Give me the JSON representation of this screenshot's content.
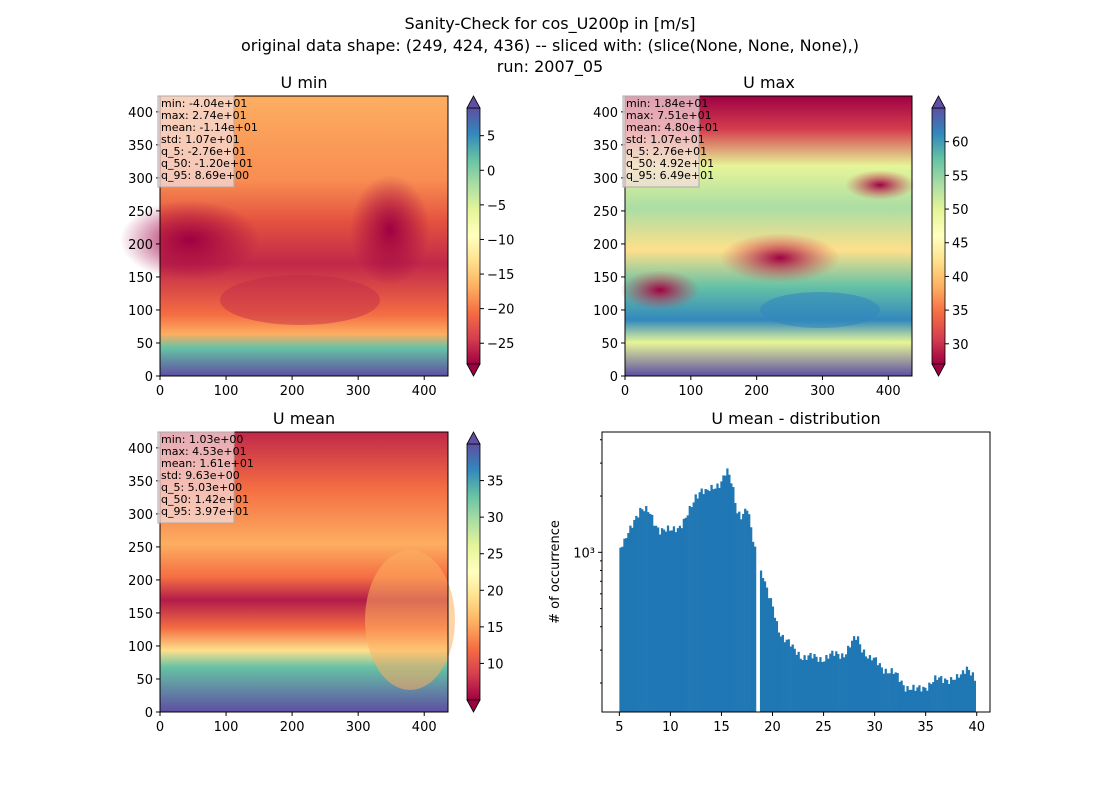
{
  "figure": {
    "title_lines": [
      "Sanity-Check for cos_U200p in [m/s]",
      "original data shape: (249, 424, 436) -- sliced with: (slice(None, None, None),)",
      "run: 2007_05"
    ]
  },
  "chart_data": [
    {
      "type": "heatmap",
      "title": "U min",
      "colormap": "Spectral",
      "x_ticks": [
        "0",
        "100",
        "200",
        "300",
        "400"
      ],
      "y_ticks": [
        "0",
        "50",
        "100",
        "150",
        "200",
        "250",
        "300",
        "350",
        "400"
      ],
      "xlim": [
        0,
        436
      ],
      "ylim": [
        0,
        424
      ],
      "colorbar_ticks": [
        "5",
        "0",
        "−5",
        "−10",
        "−15",
        "−20",
        "−25"
      ],
      "colorbar_range": [
        -28,
        9
      ],
      "stats": [
        "min: -4.04e+01",
        "max: 2.74e+01",
        "mean: -1.14e+01",
        "std: 1.07e+01",
        "q_5: -2.76e+01",
        "q_50: -1.20e+01",
        "q_95: 8.69e+00"
      ]
    },
    {
      "type": "heatmap",
      "title": "U max",
      "colormap": "Spectral",
      "x_ticks": [
        "0",
        "100",
        "200",
        "300",
        "400"
      ],
      "y_ticks": [
        "0",
        "50",
        "100",
        "150",
        "200",
        "250",
        "300",
        "350",
        "400"
      ],
      "xlim": [
        0,
        436
      ],
      "ylim": [
        0,
        424
      ],
      "colorbar_ticks": [
        "60",
        "55",
        "50",
        "45",
        "40",
        "35",
        "30"
      ],
      "colorbar_range": [
        27,
        65
      ],
      "stats": [
        "min: 1.84e+01",
        "max: 7.51e+01",
        "mean: 4.80e+01",
        "std: 1.07e+01",
        "q_5: 2.76e+01",
        "q_50: 4.92e+01",
        "q_95: 6.49e+01"
      ]
    },
    {
      "type": "heatmap",
      "title": "U mean",
      "colormap": "Spectral",
      "x_ticks": [
        "0",
        "100",
        "200",
        "300",
        "400"
      ],
      "y_ticks": [
        "0",
        "50",
        "100",
        "150",
        "200",
        "250",
        "300",
        "350",
        "400"
      ],
      "xlim": [
        0,
        436
      ],
      "ylim": [
        0,
        424
      ],
      "colorbar_ticks": [
        "35",
        "30",
        "25",
        "20",
        "15",
        "10"
      ],
      "colorbar_range": [
        5,
        40
      ],
      "stats": [
        "min: 1.03e+00",
        "max: 4.53e+01",
        "mean: 1.61e+01",
        "std: 9.63e+00",
        "q_5: 5.03e+00",
        "q_50: 1.42e+01",
        "q_95: 3.97e+01"
      ]
    },
    {
      "type": "bar",
      "title": "U mean - distribution",
      "ylabel": "# of occurrence",
      "xlabel": "",
      "yscale": "log",
      "x_ticks": [
        "5",
        "10",
        "15",
        "20",
        "25",
        "30",
        "35",
        "40"
      ],
      "xlim": [
        3.3,
        41.3
      ],
      "ylim": [
        140,
        4400
      ],
      "y_tick_label": "10³",
      "bar_color": "#1f77b4",
      "anchors_x": [
        5.0,
        5.5,
        6.0,
        6.5,
        7.0,
        7.5,
        8.0,
        8.5,
        9.0,
        9.5,
        10.0,
        10.5,
        11.0,
        11.5,
        12.0,
        12.5,
        13.0,
        13.5,
        14.0,
        14.5,
        15.0,
        15.5,
        16.0,
        16.5,
        17.0,
        17.5,
        18.0,
        18.5,
        18.6,
        19.0,
        19.5,
        20.0,
        20.5,
        21.0,
        21.5,
        22.0,
        23.0,
        24.0,
        25.0,
        26.0,
        27.0,
        27.5,
        28.0,
        28.3,
        28.6,
        29.0,
        29.5,
        30.0,
        31.0,
        32.0,
        33.0,
        34.0,
        35.0,
        36.0,
        37.0,
        38.0,
        38.5,
        39.0,
        39.5,
        39.9
      ],
      "anchors_y": [
        1050,
        1100,
        1300,
        1550,
        1700,
        1650,
        1600,
        1450,
        1320,
        1280,
        1300,
        1380,
        1400,
        1480,
        1700,
        2050,
        2200,
        2050,
        2150,
        2300,
        2450,
        2700,
        2300,
        1700,
        1600,
        1700,
        1200,
        900,
        0,
        800,
        600,
        500,
        400,
        360,
        330,
        300,
        280,
        270,
        275,
        280,
        290,
        310,
        335,
        350,
        320,
        300,
        270,
        260,
        240,
        220,
        195,
        180,
        195,
        205,
        215,
        205,
        220,
        250,
        230,
        195
      ]
    }
  ]
}
